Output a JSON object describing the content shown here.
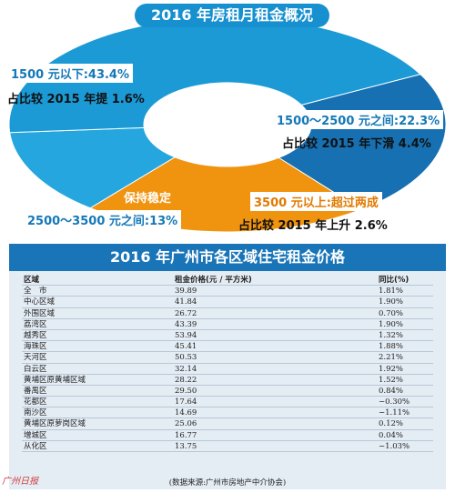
{
  "chart_data": {
    "type": "pie",
    "title": "2016 年房租月租金概况",
    "slices": [
      {
        "label": "1500 元以下:43.4%",
        "value": 43.4,
        "note": "占比较 2015 年提 1.6%",
        "color": "#1b9ad6"
      },
      {
        "label": "1500～2500 元之间:22.3%",
        "value": 22.3,
        "note": "占比较 2015 年下滑 4.4%",
        "color": "#1670b2"
      },
      {
        "label": "3500 元以上:超过两成",
        "value": 21.3,
        "note": "占比较 2015 年上升 2.6%",
        "color": "#f0930f"
      },
      {
        "label": "2500～3500 元之间:13%",
        "value": 13,
        "note": "保持稳定",
        "color": "#25a6df"
      }
    ]
  },
  "table": {
    "title": "2016 年广州市各区域住宅租金价格",
    "headers": [
      "区域",
      "租金价格(元 / 平方米)",
      "同比(%)"
    ],
    "rows": [
      [
        "全　市",
        "39.89",
        "1.81%"
      ],
      [
        "中心区域",
        "41.84",
        "1.90%"
      ],
      [
        "外围区域",
        "26.72",
        "0.70%"
      ],
      [
        "荔湾区",
        "43.39",
        "1.90%"
      ],
      [
        "越秀区",
        "53.94",
        "1.32%"
      ],
      [
        "海珠区",
        "45.41",
        "1.88%"
      ],
      [
        "天河区",
        "50.53",
        "2.21%"
      ],
      [
        "白云区",
        "32.14",
        "1.92%"
      ],
      [
        "黄埔区原黄埔区域",
        "28.22",
        "1.52%"
      ],
      [
        "番禺区",
        "29.50",
        "0.84%"
      ],
      [
        "花都区",
        "17.64",
        "−0.30%"
      ],
      [
        "南沙区",
        "14.69",
        "−1.11%"
      ],
      [
        "黄埔区原萝岗区域",
        "25.06",
        "0.12%"
      ],
      [
        "增城区",
        "16.77",
        "0.04%"
      ],
      [
        "从化区",
        "13.75",
        "−1.03%"
      ]
    ],
    "source": "(数据来源:广州市房地产中介协会)"
  },
  "watermark": "广州日报"
}
